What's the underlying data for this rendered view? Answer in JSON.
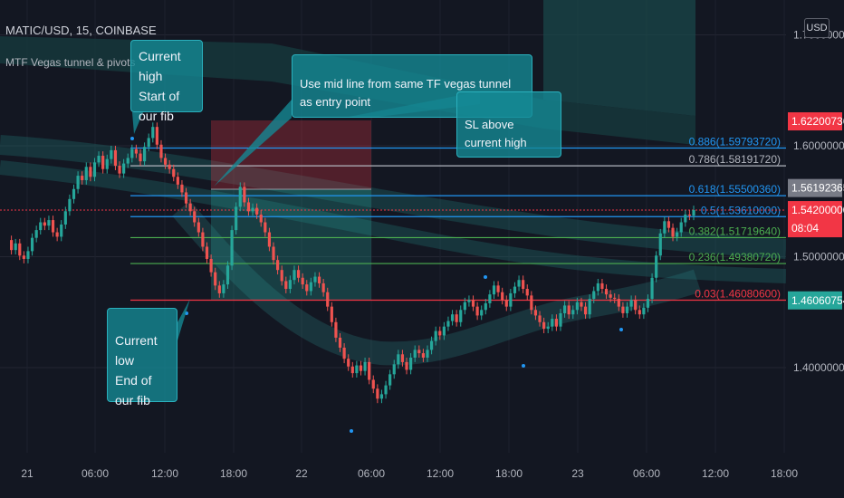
{
  "header": {
    "symbol": "MATIC/USD, 15, COINBASE",
    "indicator": "MTF Vegas tunnel & pivots",
    "currency": "USD"
  },
  "annotations": {
    "current_high": [
      "Current high",
      "Start of our fib"
    ],
    "mid_line": "Use mid line from same TF vegas tunnel as entry point",
    "sl": "SL above current high",
    "current_low": [
      "Current low",
      "End of our fib"
    ]
  },
  "colors": {
    "background": "#131722",
    "up_candle": "#26a69a",
    "down_candle": "#ef5350",
    "tunnel": "#1f7a78",
    "fib_blue": "#2196f3",
    "fib_green": "#4caf50",
    "fib_red": "#f23645"
  },
  "chart_data": {
    "type": "candlestick",
    "y_axis": {
      "range": [
        1.345,
        1.707
      ],
      "ticks": [
        {
          "value": 1.7,
          "label": "1.70000000"
        },
        {
          "value": 1.6,
          "label": "1.60000000"
        },
        {
          "value": 1.5,
          "label": "1.50000000"
        },
        {
          "value": 1.4,
          "label": "1.40000000"
        }
      ]
    },
    "x_axis": {
      "ticks": [
        "21",
        "06:00",
        "12:00",
        "18:00",
        "22",
        "06:00",
        "12:00",
        "18:00",
        "23",
        "06:00",
        "12:00",
        "18:00"
      ]
    },
    "fib_levels": [
      {
        "label": "0.886(1.59793720)",
        "value": 1.5979372,
        "color": "#2196f3"
      },
      {
        "label": "0.786(1.58191720)",
        "value": 1.5819172,
        "color": "#b2b5be"
      },
      {
        "label": "0.618(1.55500360)",
        "value": 1.5550036,
        "color": "#2196f3"
      },
      {
        "label": "0.5(1.53610000)",
        "value": 1.5361,
        "color": "#2196f3"
      },
      {
        "label": "0.382(1.51719640)",
        "value": 1.5171964,
        "color": "#4caf50"
      },
      {
        "label": "0.236(1.49380720)",
        "value": 1.4938072,
        "color": "#4caf50"
      },
      {
        "label": "0.03(1.46080600)",
        "value": 1.460806,
        "color": "#f23645"
      }
    ],
    "price_labels": [
      {
        "text": "1.62200736",
        "value": 1.62200736,
        "color": "#f23645"
      },
      {
        "text": "1.56192365",
        "value": 1.56192365,
        "color": "#787b86"
      },
      {
        "text": "1.54200000",
        "value": 1.542,
        "color": "#f23645",
        "sub": "08:04"
      },
      {
        "text": "1.46060754",
        "value": 1.46060754,
        "color": "#26a69a"
      }
    ],
    "last_price": 1.542,
    "closes": [
      1.515,
      1.506,
      1.512,
      1.501,
      1.498,
      1.505,
      1.517,
      1.524,
      1.531,
      1.528,
      1.533,
      1.522,
      1.518,
      1.529,
      1.541,
      1.552,
      1.561,
      1.573,
      1.569,
      1.581,
      1.572,
      1.585,
      1.591,
      1.579,
      1.588,
      1.596,
      1.582,
      1.575,
      1.584,
      1.589,
      1.597,
      1.593,
      1.586,
      1.599,
      1.607,
      1.617,
      1.601,
      1.589,
      1.583,
      1.579,
      1.572,
      1.565,
      1.558,
      1.548,
      1.541,
      1.531,
      1.522,
      1.509,
      1.498,
      1.486,
      1.474,
      1.467,
      1.475,
      1.492,
      1.524,
      1.545,
      1.563,
      1.549,
      1.541,
      1.544,
      1.538,
      1.531,
      1.522,
      1.509,
      1.497,
      1.488,
      1.478,
      1.471,
      1.479,
      1.488,
      1.481,
      1.475,
      1.469,
      1.477,
      1.482,
      1.476,
      1.468,
      1.455,
      1.441,
      1.427,
      1.418,
      1.408,
      1.401,
      1.395,
      1.402,
      1.397,
      1.405,
      1.389,
      1.381,
      1.372,
      1.376,
      1.384,
      1.394,
      1.403,
      1.412,
      1.405,
      1.398,
      1.409,
      1.416,
      1.413,
      1.409,
      1.416,
      1.424,
      1.433,
      1.429,
      1.437,
      1.442,
      1.448,
      1.441,
      1.452,
      1.459,
      1.461,
      1.455,
      1.447,
      1.452,
      1.458,
      1.466,
      1.474,
      1.468,
      1.461,
      1.455,
      1.467,
      1.473,
      1.479,
      1.471,
      1.465,
      1.452,
      1.447,
      1.441,
      1.435,
      1.437,
      1.444,
      1.437,
      1.449,
      1.456,
      1.448,
      1.452,
      1.459,
      1.455,
      1.448,
      1.462,
      1.469,
      1.476,
      1.471,
      1.466,
      1.463,
      1.462,
      1.455,
      1.449,
      1.455,
      1.461,
      1.452,
      1.448,
      1.454,
      1.462,
      1.481,
      1.501,
      1.521,
      1.532,
      1.526,
      1.518,
      1.522,
      1.531,
      1.538,
      1.537,
      1.542
    ]
  }
}
